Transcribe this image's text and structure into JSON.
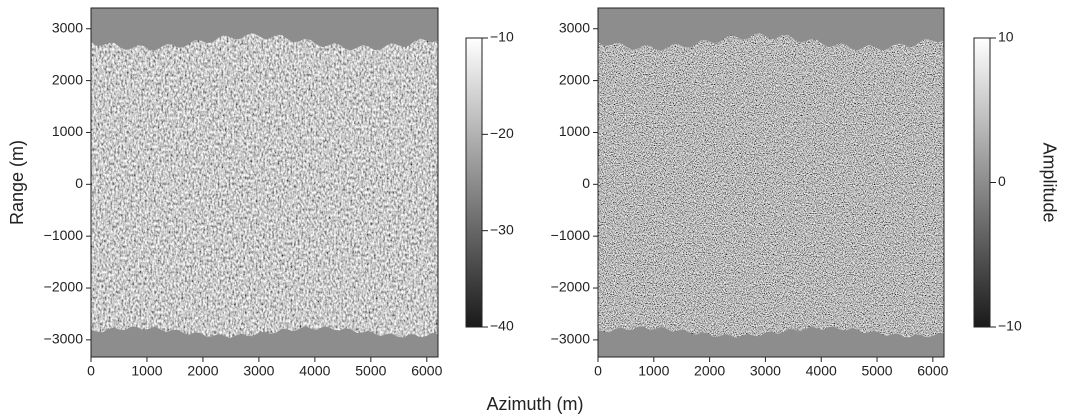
{
  "chart_data": [
    {
      "type": "image",
      "y_label": "Range (m)",
      "xlim": [
        0,
        6200
      ],
      "ylim": [
        -3330,
        3400
      ],
      "xticks": [
        0,
        1000,
        2000,
        3000,
        4000,
        5000,
        6000
      ],
      "yticks": [
        {
          "value": -3000,
          "label": "−3000"
        },
        {
          "value": -2000,
          "label": "−2000"
        },
        {
          "value": -1000,
          "label": "−1000"
        },
        0,
        1000,
        2000,
        3000
      ],
      "clim": [
        -40,
        -10
      ],
      "cticks": [
        {
          "value": -40,
          "label": "−40"
        },
        {
          "value": -30,
          "label": "−30"
        },
        {
          "value": -20,
          "label": "−20"
        },
        {
          "value": -10,
          "label": "−10"
        }
      ]
    },
    {
      "type": "image",
      "colorbar_label": "Amplitude",
      "xlim": [
        0,
        6200
      ],
      "ylim": [
        -3330,
        3400
      ],
      "xticks": [
        0,
        1000,
        2000,
        3000,
        4000,
        5000,
        6000
      ],
      "yticks": [
        {
          "value": -3000,
          "label": "−3000"
        },
        {
          "value": -2000,
          "label": "−2000"
        },
        {
          "value": -1000,
          "label": "−1000"
        },
        0,
        1000,
        2000,
        3000
      ],
      "clim": [
        -10,
        10
      ],
      "cticks": [
        {
          "value": -10,
          "label": "−10"
        },
        0,
        10
      ]
    }
  ],
  "x_label": "Azimuth (m)"
}
